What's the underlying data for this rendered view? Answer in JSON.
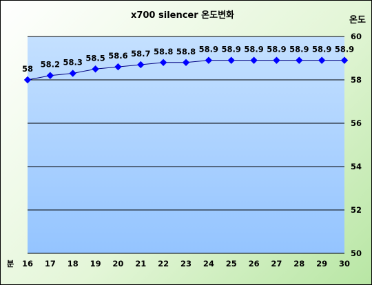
{
  "chart_data": {
    "type": "line",
    "title": "x700 silencer 온도변화",
    "xlabel": "분",
    "ylabel": "온도",
    "x": [
      16,
      17,
      18,
      19,
      20,
      21,
      22,
      23,
      24,
      25,
      26,
      27,
      28,
      29,
      30
    ],
    "values": [
      58,
      58.2,
      58.3,
      58.5,
      58.6,
      58.7,
      58.8,
      58.8,
      58.9,
      58.9,
      58.9,
      58.9,
      58.9,
      58.9,
      58.9
    ],
    "data_labels": [
      "58",
      "58.2",
      "58.3",
      "58.5",
      "58.6",
      "58.7",
      "58.8",
      "58.8",
      "58.9",
      "58.9",
      "58.9",
      "58.9",
      "58.9",
      "58.9",
      "58.9"
    ],
    "ylim": [
      50,
      60
    ],
    "y_ticks": [
      "50",
      "52",
      "54",
      "56",
      "58",
      "60"
    ],
    "y_axis_side": "right",
    "grid": true,
    "legend": "none",
    "colors": {
      "line": "#000080",
      "marker": "#0000FF",
      "plot_top": "#C4E0FF",
      "plot_bottom": "#94C4FF",
      "gridline": "#000000"
    },
    "marker": "diamond-icon"
  }
}
